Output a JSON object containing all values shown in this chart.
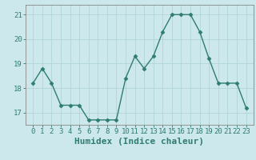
{
  "x": [
    0,
    1,
    2,
    3,
    4,
    5,
    6,
    7,
    8,
    9,
    10,
    11,
    12,
    13,
    14,
    15,
    16,
    17,
    18,
    19,
    20,
    21,
    22,
    23
  ],
  "y": [
    18.2,
    18.8,
    18.2,
    17.3,
    17.3,
    17.3,
    16.7,
    16.7,
    16.7,
    16.7,
    18.4,
    19.3,
    18.8,
    19.3,
    20.3,
    21.0,
    21.0,
    21.0,
    20.3,
    19.2,
    18.2,
    18.2,
    18.2,
    17.2
  ],
  "line_color": "#2e7d6e",
  "marker": "D",
  "marker_size": 2.5,
  "linewidth": 1.0,
  "bg_color": "#cce8ec",
  "grid_color": "#b0d4d8",
  "xlabel": "Humidex (Indice chaleur)",
  "xlabel_fontsize": 8,
  "ylim_min": 16.5,
  "ylim_max": 21.4,
  "yticks": [
    17,
    18,
    19,
    20,
    21
  ],
  "xticks": [
    0,
    1,
    2,
    3,
    4,
    5,
    6,
    7,
    8,
    9,
    10,
    11,
    12,
    13,
    14,
    15,
    16,
    17,
    18,
    19,
    20,
    21,
    22,
    23
  ],
  "tick_fontsize": 6.5,
  "tick_color": "#2e7d6e",
  "spine_color": "#888888"
}
